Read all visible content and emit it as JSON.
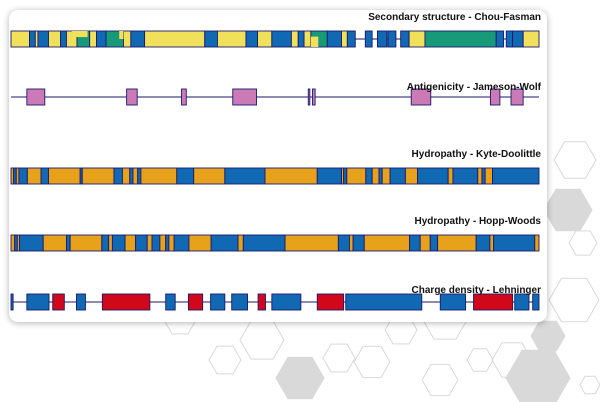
{
  "colors": {
    "navy_outline": "#1a1a6e",
    "blue": "#1168b3",
    "yellow": "#f1e05a",
    "teal": "#169a78",
    "orange": "#e8a11a",
    "pink": "#cc7ab6",
    "red": "#d0081a",
    "hexagon": "#d9d9d9"
  },
  "tracks": [
    {
      "id": "secondary-structure",
      "title": "Secondary structure - Chou-Fasman",
      "style": "band",
      "segments": [
        [
          "y",
          0,
          3.5
        ],
        [
          "b",
          3.5,
          4.6
        ],
        [
          "y",
          4.6,
          5.1
        ],
        [
          "b",
          5.1,
          7.1
        ],
        [
          "y",
          7.1,
          9.4
        ],
        [
          "b",
          9.4,
          10.5
        ],
        [
          "y",
          10.5,
          12.5
        ],
        [
          "t",
          12.5,
          14.9
        ],
        [
          "y",
          14.9,
          16.2
        ],
        [
          "b",
          16.2,
          18.0
        ],
        [
          "t",
          18.0,
          21.3
        ],
        [
          "y",
          21.3,
          22.7
        ],
        [
          "b",
          22.7,
          25.3
        ],
        [
          "y",
          25.3,
          36.7
        ],
        [
          "b",
          36.7,
          39.1
        ],
        [
          "y",
          39.1,
          44.5
        ],
        [
          "b",
          44.5,
          46.7
        ],
        [
          "y",
          46.7,
          49.4
        ],
        [
          "b",
          49.4,
          53.1
        ],
        [
          "y",
          53.1,
          54.4
        ],
        [
          "b",
          54.4,
          55.5
        ],
        [
          "y",
          55.5,
          56.8
        ],
        [
          "t",
          56.8,
          59.9
        ],
        [
          "b",
          59.9,
          62.6
        ],
        [
          "y",
          62.6,
          63.7
        ],
        [
          "b",
          63.7,
          65.2
        ],
        [
          "b",
          67.1,
          68.4
        ],
        [
          "b",
          69.4,
          71.2
        ],
        [
          "b",
          71.4,
          72.9
        ],
        [
          "b",
          73.8,
          75.4
        ],
        [
          "y",
          75.4,
          78.4
        ],
        [
          "t",
          78.4,
          91.9
        ],
        [
          "b",
          91.9,
          93.3
        ],
        [
          "b",
          93.8,
          95.0
        ],
        [
          "b",
          95.0,
          97.0
        ],
        [
          "y",
          97.0,
          100
        ]
      ],
      "extras": [
        [
          "y",
          11.5,
          14.5,
          0,
          0.38
        ],
        [
          "y",
          20.5,
          21.3,
          0,
          0.5
        ],
        [
          "y",
          56.8,
          58.2,
          0.35,
          1
        ]
      ]
    },
    {
      "id": "antigenicity",
      "title": "Antigenicity - Jameson-Wolf",
      "style": "line",
      "segments": [
        [
          "p",
          3.0,
          6.4
        ],
        [
          "p",
          21.9,
          23.9
        ],
        [
          "p",
          32.3,
          33.2
        ],
        [
          "p",
          42.0,
          46.5
        ],
        [
          "p",
          56.3,
          56.6
        ],
        [
          "p",
          57.1,
          57.6
        ],
        [
          "p",
          75.8,
          79.5
        ],
        [
          "p",
          90.8,
          92.6
        ],
        [
          "p",
          94.7,
          97.0
        ]
      ]
    },
    {
      "id": "hydropathy-kyte-doolittle",
      "title": "Hydropathy - Kyte-Doolittle",
      "style": "band",
      "segments": [
        [
          "o",
          0,
          0.5
        ],
        [
          "b",
          0.5,
          1.0
        ],
        [
          "o",
          1.0,
          1.5
        ],
        [
          "b",
          1.5,
          3.1
        ],
        [
          "o",
          3.1,
          5.7
        ],
        [
          "b",
          5.7,
          7.1
        ],
        [
          "o",
          7.1,
          13.1
        ],
        [
          "b",
          13.1,
          13.5
        ],
        [
          "o",
          13.5,
          19.5
        ],
        [
          "b",
          19.5,
          21.1
        ],
        [
          "o",
          21.1,
          22.5
        ],
        [
          "b",
          22.5,
          23.1
        ],
        [
          "o",
          23.1,
          24.0
        ],
        [
          "b",
          24.0,
          24.6
        ],
        [
          "o",
          24.6,
          31.4
        ],
        [
          "b",
          31.4,
          34.6
        ],
        [
          "o",
          34.6,
          40.5
        ],
        [
          "b",
          40.5,
          48.1
        ],
        [
          "o",
          48.1,
          58.0
        ],
        [
          "b",
          58.0,
          62.6
        ],
        [
          "o",
          62.6,
          63.0
        ],
        [
          "b",
          63.0,
          63.6
        ],
        [
          "o",
          63.6,
          67.2
        ],
        [
          "b",
          67.2,
          68.4
        ],
        [
          "o",
          68.4,
          69.7
        ],
        [
          "b",
          69.7,
          70.3
        ],
        [
          "o",
          70.3,
          71.8
        ],
        [
          "b",
          71.8,
          74.7
        ],
        [
          "o",
          74.7,
          77.0
        ],
        [
          "b",
          77.0,
          82.8
        ],
        [
          "o",
          82.8,
          83.7
        ],
        [
          "b",
          83.7,
          88.4
        ],
        [
          "o",
          88.4,
          89.2
        ],
        [
          "b",
          89.2,
          89.8
        ],
        [
          "o",
          89.8,
          91.2
        ],
        [
          "b",
          91.2,
          100
        ]
      ]
    },
    {
      "id": "hydropathy-hopp-woods",
      "title": "Hydropathy - Hopp-Woods",
      "style": "band",
      "segments": [
        [
          "o",
          0,
          0.7
        ],
        [
          "b",
          0.7,
          1.2
        ],
        [
          "o",
          1.2,
          1.6
        ],
        [
          "b",
          1.6,
          6.1
        ],
        [
          "o",
          6.1,
          10.5
        ],
        [
          "b",
          10.5,
          11.2
        ],
        [
          "o",
          11.2,
          17.2
        ],
        [
          "b",
          17.2,
          18.5
        ],
        [
          "o",
          18.5,
          19.2
        ],
        [
          "b",
          19.2,
          21.6
        ],
        [
          "o",
          21.6,
          23.6
        ],
        [
          "b",
          23.6,
          25.8
        ],
        [
          "o",
          25.8,
          26.7
        ],
        [
          "b",
          26.7,
          28.2
        ],
        [
          "o",
          28.2,
          29.3
        ],
        [
          "b",
          29.3,
          29.9
        ],
        [
          "o",
          29.9,
          30.9
        ],
        [
          "b",
          30.9,
          33.7
        ],
        [
          "o",
          33.7,
          37.9
        ],
        [
          "b",
          37.9,
          43.0
        ],
        [
          "o",
          43.0,
          44.0
        ],
        [
          "b",
          44.0,
          51.9
        ],
        [
          "o",
          51.9,
          62.0
        ],
        [
          "b",
          62.0,
          64.1
        ],
        [
          "o",
          64.1,
          64.8
        ],
        [
          "b",
          64.8,
          66.9
        ],
        [
          "o",
          66.9,
          75.5
        ],
        [
          "b",
          75.5,
          77.5
        ],
        [
          "o",
          77.5,
          79.4
        ],
        [
          "b",
          79.4,
          80.8
        ],
        [
          "o",
          80.8,
          88.1
        ],
        [
          "b",
          88.1,
          90.7
        ],
        [
          "o",
          90.7,
          91.4
        ],
        [
          "b",
          91.4,
          99.2
        ],
        [
          "o",
          99.2,
          100
        ]
      ]
    },
    {
      "id": "charge-density",
      "title": "Charge density - Lehninger",
      "style": "line",
      "segments": [
        [
          "b",
          0,
          0.4
        ],
        [
          "b",
          3.0,
          7.2
        ],
        [
          "r",
          7.9,
          10.1
        ],
        [
          "b",
          12.4,
          14.1
        ],
        [
          "r",
          17.3,
          26.3
        ],
        [
          "b",
          29.3,
          31.1
        ],
        [
          "r",
          33.6,
          36.3
        ],
        [
          "b",
          37.8,
          40.5
        ],
        [
          "b",
          41.8,
          44.8
        ],
        [
          "r",
          46.8,
          48.2
        ],
        [
          "b",
          49.4,
          54.9
        ],
        [
          "r",
          58.0,
          63.0
        ],
        [
          "b",
          63.4,
          77.8
        ],
        [
          "b",
          81.3,
          86.1
        ],
        [
          "r",
          87.6,
          95.0
        ],
        [
          "b",
          95.4,
          98.1
        ],
        [
          "b",
          98.8,
          100
        ]
      ]
    }
  ]
}
